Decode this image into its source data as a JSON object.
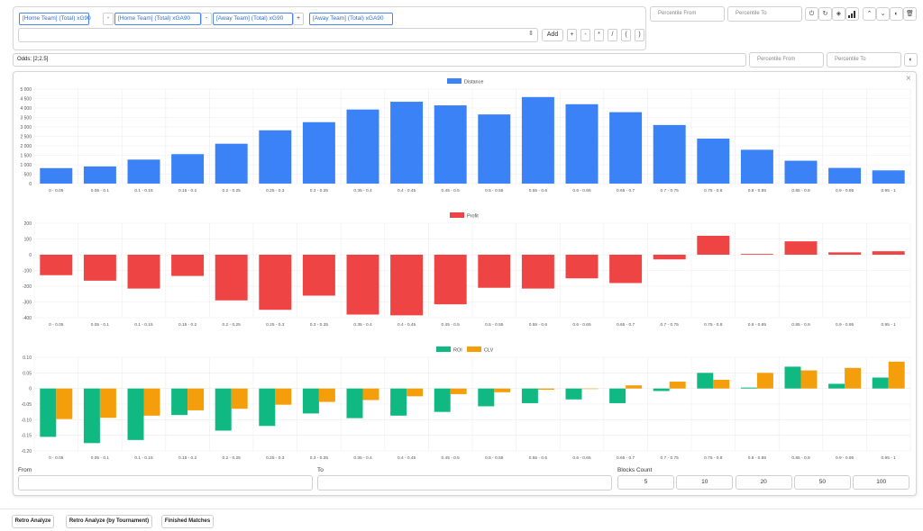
{
  "formula": {
    "tokens": [
      "[Home Team] (Total) xG90",
      "-",
      "[Home Team] (Total) xGA90",
      "-",
      "[Away Team] (Total) xG90",
      "+",
      "[Away Team] (Total) xGA90"
    ],
    "add_label": "Add",
    "operators": [
      "+",
      "-",
      "*",
      "/",
      "(",
      ")"
    ]
  },
  "filters": {
    "percentile_from_placeholder": "Percentile From",
    "percentile_to_placeholder": "Percentile To"
  },
  "odds": {
    "value": "Odds: [2;2.5]",
    "percentile_from_placeholder": "Percentile From",
    "percentile_to_placeholder": "Percentile To"
  },
  "range_form": {
    "from_label": "From",
    "to_label": "To",
    "blocks_label": "Blocks Count",
    "block_options": [
      "5",
      "10",
      "20",
      "50",
      "100"
    ]
  },
  "bottom_buttons": [
    "Retro Analyze",
    "Retro Analyze (by Tournament)",
    "Finished Matches"
  ],
  "colors": {
    "blue": "#3b82f6",
    "red": "#ef4444",
    "green": "#10b981",
    "orange": "#f59e0b"
  },
  "chart_data": [
    {
      "type": "bar",
      "categories": [
        "0 - 0.05",
        "0.05 - 0.1",
        "0.1 - 0.15",
        "0.15 - 0.2",
        "0.2 - 0.25",
        "0.25 - 0.3",
        "0.3 - 0.35",
        "0.35 - 0.4",
        "0.4 - 0.45",
        "0.45 - 0.5",
        "0.5 - 0.55",
        "0.55 - 0.6",
        "0.6 - 0.65",
        "0.65 - 0.7",
        "0.7 - 0.75",
        "0.75 - 0.8",
        "0.8 - 0.85",
        "0.85 - 0.9",
        "0.9 - 0.95",
        "0.95 - 1"
      ],
      "series": [
        {
          "name": "Distance",
          "values": [
            820,
            910,
            1270,
            1560,
            2110,
            2820,
            3250,
            3920,
            4330,
            4140,
            3660,
            4580,
            4200,
            3780,
            3100,
            2380,
            1790,
            1210,
            830,
            700
          ]
        }
      ],
      "ylim": [
        0,
        5000
      ],
      "yticks": [
        "5 000",
        "4 500",
        "4 000",
        "3 500",
        "3 000",
        "2 500",
        "2 000",
        "1 500",
        "1 000",
        "500",
        "0"
      ],
      "legend": "top-center"
    },
    {
      "type": "bar",
      "categories": [
        "0 - 0.05",
        "0.05 - 0.1",
        "0.1 - 0.15",
        "0.15 - 0.2",
        "0.2 - 0.25",
        "0.25 - 0.3",
        "0.3 - 0.35",
        "0.35 - 0.4",
        "0.4 - 0.45",
        "0.45 - 0.5",
        "0.5 - 0.55",
        "0.55 - 0.6",
        "0.6 - 0.65",
        "0.65 - 0.7",
        "0.7 - 0.75",
        "0.75 - 0.8",
        "0.8 - 0.85",
        "0.85 - 0.9",
        "0.9 - 0.95",
        "0.95 - 1"
      ],
      "series": [
        {
          "name": "Profit",
          "values": [
            -130,
            -165,
            -215,
            -135,
            -290,
            -350,
            -260,
            -380,
            -385,
            -315,
            -210,
            -215,
            -150,
            -180,
            -30,
            120,
            5,
            85,
            15,
            22
          ]
        }
      ],
      "ylim": [
        -400,
        200
      ],
      "yticks": [
        "200",
        "100",
        "0",
        "-100",
        "-200",
        "-300",
        "-400"
      ],
      "legend": "top-center"
    },
    {
      "type": "bar",
      "categories": [
        "0 - 0.05",
        "0.05 - 0.1",
        "0.1 - 0.15",
        "0.15 - 0.2",
        "0.2 - 0.25",
        "0.25 - 0.3",
        "0.3 - 0.35",
        "0.35 - 0.4",
        "0.4 - 0.45",
        "0.45 - 0.5",
        "0.5 - 0.55",
        "0.55 - 0.6",
        "0.6 - 0.65",
        "0.65 - 0.7",
        "0.7 - 0.75",
        "0.75 - 0.8",
        "0.8 - 0.85",
        "0.85 - 0.9",
        "0.9 - 0.95",
        "0.95 - 1"
      ],
      "series": [
        {
          "name": "ROI",
          "values": [
            -0.155,
            -0.175,
            -0.165,
            -0.085,
            -0.135,
            -0.12,
            -0.08,
            -0.095,
            -0.087,
            -0.075,
            -0.057,
            -0.047,
            -0.035,
            -0.047,
            -0.008,
            0.05,
            0.003,
            0.07,
            0.015,
            0.035
          ]
        },
        {
          "name": "CLV",
          "values": [
            -0.098,
            -0.094,
            -0.087,
            -0.07,
            -0.065,
            -0.052,
            -0.043,
            -0.037,
            -0.025,
            -0.018,
            -0.012,
            -0.004,
            0.0,
            0.01,
            0.022,
            0.028,
            0.05,
            0.058,
            0.066,
            0.086
          ]
        }
      ],
      "ylim": [
        -0.2,
        0.1
      ],
      "yticks": [
        "0.10",
        "0.05",
        "0",
        "-0.05",
        "-0.10",
        "-0.15",
        "-0.20"
      ],
      "legend": "top-center"
    }
  ]
}
